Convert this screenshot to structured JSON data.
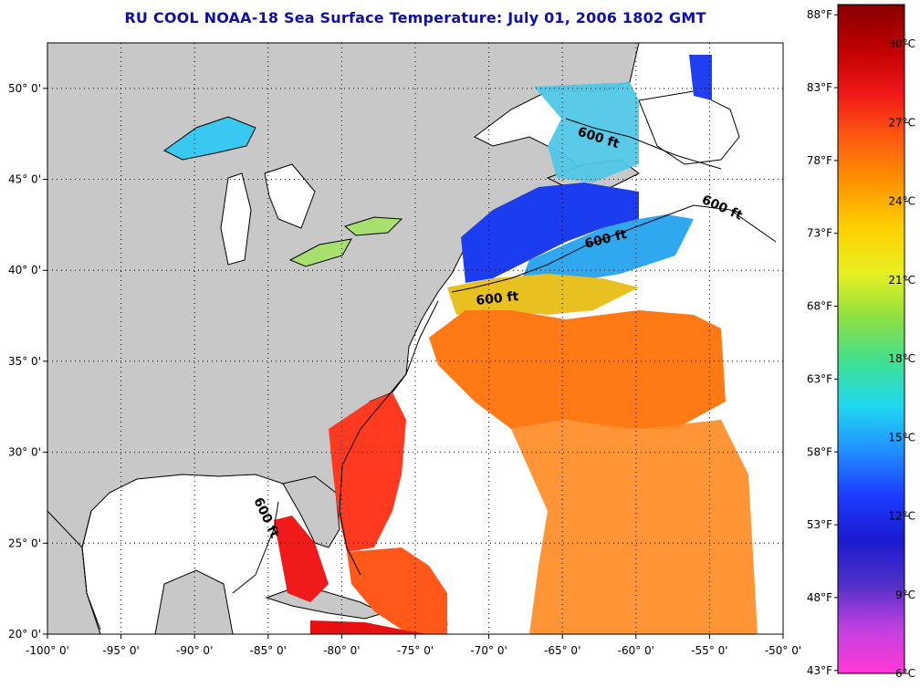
{
  "title": "RU COOL  NOAA-18  Sea Surface Temperature:  July 01, 2006 1802 GMT",
  "map": {
    "lon_ticks": [
      -100,
      -95,
      -90,
      -85,
      -80,
      -75,
      -70,
      -65,
      -60,
      -55,
      -50
    ],
    "lon_labels": [
      "-100° 0'",
      "-95° 0'",
      "-90° 0'",
      "-85° 0'",
      "-80° 0'",
      "-75° 0'",
      "-70° 0'",
      "-65° 0'",
      "-60° 0'",
      "-55° 0'",
      "-50° 0'"
    ],
    "lat_ticks": [
      20,
      25,
      30,
      35,
      40,
      45,
      50
    ],
    "lat_labels": [
      "20° 0'",
      "25° 0'",
      "30° 0'",
      "35° 0'",
      "40° 0'",
      "45° 0'",
      "50° 0'"
    ],
    "lon_range": [
      -100,
      -50
    ],
    "lat_range": [
      20,
      52.5
    ],
    "grid": "dotted",
    "contour_labels": [
      "600 ft",
      "600 ft",
      "600 ft",
      "600 ft",
      "600 ft"
    ],
    "land_color": "#c8c8c8",
    "no_data_color": "#ffffff"
  },
  "colorbar": {
    "fahrenheit_labels": [
      "88°F",
      "83°F",
      "78°F",
      "73°F",
      "68°F",
      "63°F",
      "58°F",
      "53°F",
      "48°F",
      "43°F"
    ],
    "celsius_labels": [
      "30°C",
      "27°C",
      "24°C",
      "21°C",
      "18°C",
      "15°C",
      "12°C",
      "9°C",
      "6°C"
    ],
    "celsius_min": 6,
    "celsius_max": 31.5,
    "gradient_stops": [
      "#ff3ad6",
      "#c040e0",
      "#5030c8",
      "#1a1ad0",
      "#1c3cff",
      "#2090ff",
      "#20d8f0",
      "#40e090",
      "#90e040",
      "#e8f020",
      "#ffd000",
      "#ff9400",
      "#ff5a10",
      "#f01818",
      "#c00000",
      "#880000"
    ]
  }
}
